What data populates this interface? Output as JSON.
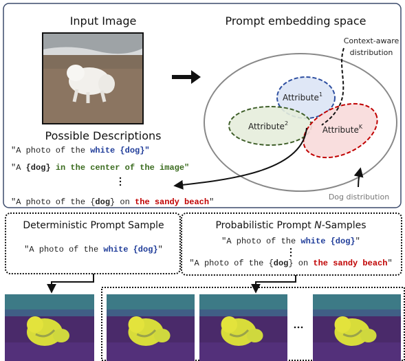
{
  "input_panel": {
    "title": "Input Image"
  },
  "embedding_panel": {
    "title": "Prompt embedding space",
    "context_label": [
      "Context-aware",
      "distribution"
    ],
    "dog_label": "Dog distribution",
    "attributes": [
      {
        "text": "Attribute",
        "sup": "1"
      },
      {
        "text": "Attribute",
        "sup": "2"
      },
      {
        "text": "Attribute",
        "sup": "K"
      }
    ]
  },
  "descriptions": {
    "title": "Possible Descriptions",
    "lines": [
      [
        {
          "text": "\"A photo of the "
        },
        {
          "text": "white {dog}\"",
          "color": "#1f3c99",
          "bold": true
        }
      ],
      [
        {
          "text": "\"A "
        },
        {
          "text": "{dog}",
          "bold": true
        },
        {
          "text": " in the center of the image\"",
          "color": "#3a6b1e",
          "bold": true
        }
      ],
      [
        {
          "text": "\"A photo of the {"
        },
        {
          "text": "dog",
          "bold": true
        },
        {
          "text": "} on "
        },
        {
          "text": "the sandy beach",
          "color": "#c00000",
          "bold": true
        },
        {
          "text": "\""
        }
      ]
    ]
  },
  "deterministic": {
    "title": "Deterministic Prompt Sample",
    "lines": [
      [
        {
          "text": "\"A photo of the "
        },
        {
          "text": "white {dog}",
          "color": "#1f3c99",
          "bold": true
        },
        {
          "text": "\""
        }
      ]
    ]
  },
  "probabilistic": {
    "title": [
      {
        "text": "Probabilistic Prompt "
      },
      {
        "text": "N",
        "italic": true
      },
      {
        "text": "-Samples"
      }
    ],
    "lines": [
      [
        {
          "text": "\"A photo of the "
        },
        {
          "text": "white {dog}",
          "color": "#1f3c99",
          "bold": true
        },
        {
          "text": "\""
        }
      ],
      [
        {
          "text": "\"A photo of the {"
        },
        {
          "text": "dog",
          "bold": true
        },
        {
          "text": "} on "
        },
        {
          "text": "the sandy beach",
          "color": "#c00000",
          "bold": true
        },
        {
          "text": "\""
        }
      ]
    ]
  }
}
